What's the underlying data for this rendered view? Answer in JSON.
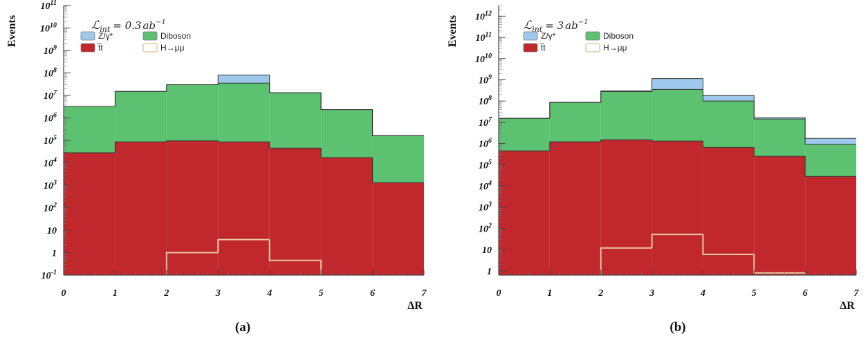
{
  "chart_data": [
    {
      "type": "stacked-histogram",
      "panel_label": "(a)",
      "lumi_label": "ℒint = 0.3ab⁻¹",
      "lumi_base": "ℒ",
      "lumi_sub": "int",
      "lumi_eq": "= 0.3",
      "lumi_unit": "ab",
      "lumi_exp": "−1",
      "xlabel": "ΔR",
      "ylabel": "Events",
      "log_y": true,
      "xlim": [
        0,
        7
      ],
      "ylim_exp": [
        -1,
        11
      ],
      "x_ticks": [
        "0",
        "1",
        "2",
        "3",
        "4",
        "5",
        "6",
        "7"
      ],
      "y_ticks": [
        {
          "base": "10",
          "exp": "-1"
        },
        {
          "base": "1",
          "exp": ""
        },
        {
          "base": "10",
          "exp": ""
        },
        {
          "base": "10",
          "exp": "2"
        },
        {
          "base": "10",
          "exp": "3"
        },
        {
          "base": "10",
          "exp": "4"
        },
        {
          "base": "10",
          "exp": "5"
        },
        {
          "base": "10",
          "exp": "6"
        },
        {
          "base": "10",
          "exp": "7"
        },
        {
          "base": "10",
          "exp": "8"
        },
        {
          "base": "10",
          "exp": "9"
        },
        {
          "base": "10",
          "exp": "10"
        },
        {
          "base": "10",
          "exp": "11"
        }
      ],
      "bins": [
        0,
        1,
        2,
        3,
        4,
        5,
        6,
        7
      ],
      "legend": [
        {
          "name": "Z/γ*",
          "key": "zgamma"
        },
        {
          "name": "Diboson",
          "key": "diboson"
        },
        {
          "name": "t̅t",
          "key": "ttbar"
        },
        {
          "name": "H→μμ",
          "key": "signal"
        }
      ],
      "series": [
        {
          "name": "t̅t",
          "key": "ttbar",
          "color": "#c0282e",
          "values": [
            28000.0,
            85000.0,
            95000.0,
            85000.0,
            45000.0,
            17000.0,
            1300.0
          ]
        },
        {
          "name": "Diboson",
          "key": "diboson",
          "color": "#5cc272",
          "values": [
            3200000.0,
            15000000.0,
            30000000.0,
            35000000.0,
            13000000.0,
            2300000.0,
            160000.0
          ]
        },
        {
          "name": "Z/γ*",
          "key": "zgamma",
          "color": "#9fc8ec",
          "values": [
            0,
            0,
            0,
            45000000.0,
            0,
            0,
            0
          ]
        },
        {
          "name": "H→μμ",
          "key": "signal",
          "color": "#e8c9a0",
          "overlay": true,
          "values": [
            null,
            null,
            1.0,
            3.8,
            0.45,
            null,
            null
          ]
        }
      ]
    },
    {
      "type": "stacked-histogram",
      "panel_label": "(b)",
      "lumi_label": "ℒint = 3ab⁻¹",
      "lumi_base": "ℒ",
      "lumi_sub": "int",
      "lumi_eq": "= 3",
      "lumi_unit": "ab",
      "lumi_exp": "−1",
      "xlabel": "ΔR",
      "ylabel": "Events",
      "log_y": true,
      "xlim": [
        0,
        7
      ],
      "ylim_exp": [
        -0.2,
        12.5
      ],
      "x_ticks": [
        "0",
        "1",
        "2",
        "3",
        "4",
        "5",
        "6",
        "7"
      ],
      "y_ticks": [
        {
          "base": "1",
          "exp": ""
        },
        {
          "base": "10",
          "exp": ""
        },
        {
          "base": "10",
          "exp": "2"
        },
        {
          "base": "10",
          "exp": "3"
        },
        {
          "base": "10",
          "exp": "4"
        },
        {
          "base": "10",
          "exp": "5"
        },
        {
          "base": "10",
          "exp": "6"
        },
        {
          "base": "10",
          "exp": "7"
        },
        {
          "base": "10",
          "exp": "8"
        },
        {
          "base": "10",
          "exp": "9"
        },
        {
          "base": "10",
          "exp": "10"
        },
        {
          "base": "10",
          "exp": "11"
        },
        {
          "base": "10",
          "exp": "12"
        }
      ],
      "bins": [
        0,
        1,
        2,
        3,
        4,
        5,
        6,
        7
      ],
      "legend": [
        {
          "name": "Z/γ*",
          "key": "zgamma"
        },
        {
          "name": "Diboson",
          "key": "diboson"
        },
        {
          "name": "t̅t",
          "key": "ttbar"
        },
        {
          "name": "H→μμ",
          "key": "signal"
        }
      ],
      "series": [
        {
          "name": "t̅t",
          "key": "ttbar",
          "color": "#c0282e",
          "values": [
            450000.0,
            1200000.0,
            1500000.0,
            1300000.0,
            650000.0,
            250000.0,
            28000.0
          ]
        },
        {
          "name": "Diboson",
          "key": "diboson",
          "color": "#5cc272",
          "values": [
            15000000.0,
            85000000.0,
            280000000.0,
            350000000.0,
            100000000.0,
            14000000.0,
            900000.0
          ]
        },
        {
          "name": "Z/γ*",
          "key": "zgamma",
          "color": "#9fc8ec",
          "values": [
            0,
            0,
            20000000.0,
            800000000.0,
            80000000.0,
            2000000.0,
            800000.0
          ]
        },
        {
          "name": "H→μμ",
          "key": "signal",
          "color": "#e8c9a0",
          "overlay": true,
          "values": [
            null,
            null,
            12,
            52,
            6,
            0.8,
            null
          ]
        }
      ]
    }
  ]
}
